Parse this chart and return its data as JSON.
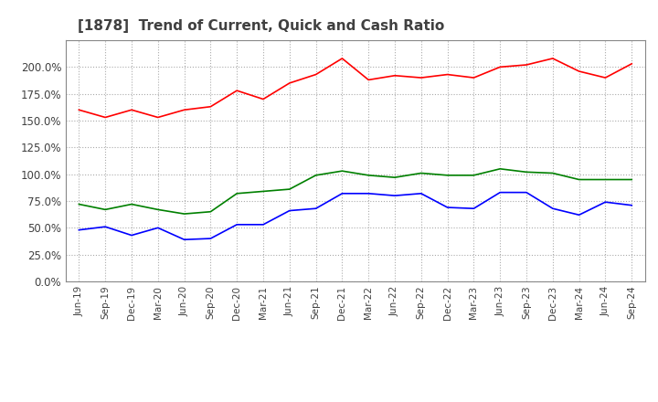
{
  "title": "[1878]  Trend of Current, Quick and Cash Ratio",
  "title_fontsize": 11,
  "title_color": "#404040",
  "background_color": "#ffffff",
  "plot_bg_color": "#ffffff",
  "grid_color": "#aaaaaa",
  "ylim": [
    0.0,
    225.0
  ],
  "yticks": [
    0.0,
    25.0,
    50.0,
    75.0,
    100.0,
    125.0,
    150.0,
    175.0,
    200.0
  ],
  "x_labels": [
    "Jun-19",
    "Sep-19",
    "Dec-19",
    "Mar-20",
    "Jun-20",
    "Sep-20",
    "Dec-20",
    "Mar-21",
    "Jun-21",
    "Sep-21",
    "Dec-21",
    "Mar-22",
    "Jun-22",
    "Sep-22",
    "Dec-22",
    "Mar-23",
    "Jun-23",
    "Sep-23",
    "Dec-23",
    "Mar-24",
    "Jun-24",
    "Sep-24"
  ],
  "current_ratio": [
    160,
    153,
    160,
    153,
    160,
    163,
    178,
    170,
    185,
    193,
    208,
    188,
    192,
    190,
    193,
    190,
    200,
    202,
    208,
    196,
    190,
    203
  ],
  "quick_ratio": [
    72,
    67,
    72,
    67,
    63,
    65,
    82,
    84,
    86,
    99,
    103,
    99,
    97,
    101,
    99,
    99,
    105,
    102,
    101,
    95,
    95,
    95
  ],
  "cash_ratio": [
    48,
    51,
    43,
    50,
    39,
    40,
    53,
    53,
    66,
    68,
    82,
    82,
    80,
    82,
    69,
    68,
    83,
    83,
    68,
    62,
    74,
    71
  ],
  "current_color": "#ff0000",
  "quick_color": "#008000",
  "cash_color": "#0000ff",
  "line_width": 1.2,
  "legend_fontsize": 9
}
